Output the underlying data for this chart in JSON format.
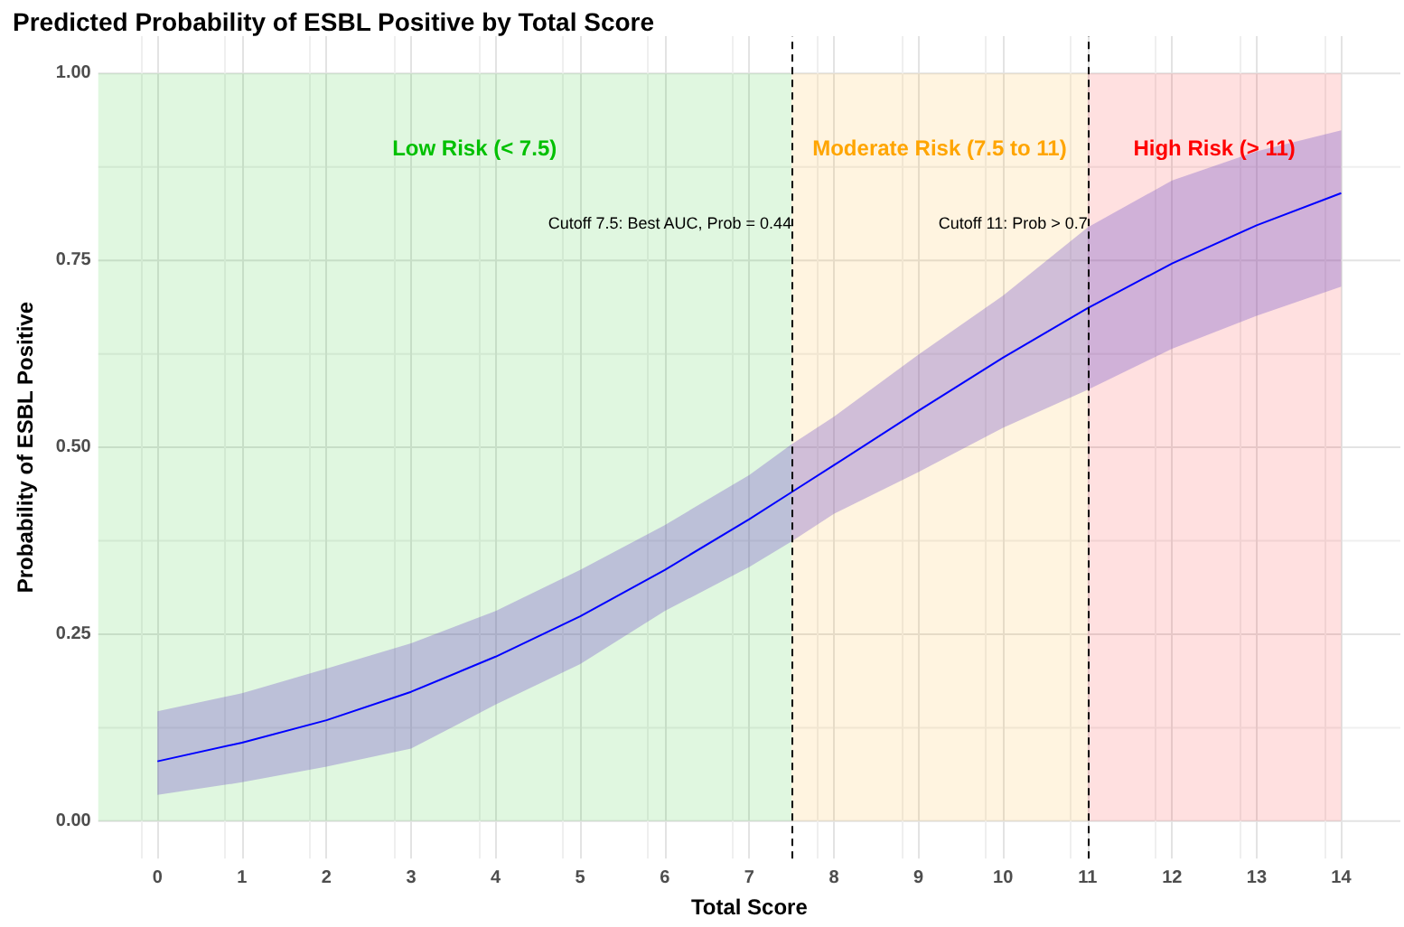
{
  "chart_data": {
    "type": "line",
    "title": "Predicted Probability of ESBL Positive by Total Score",
    "xlabel": "Total Score",
    "ylabel": "Probability of ESBL Positive",
    "x": [
      0,
      1,
      2,
      3,
      4,
      5,
      6,
      7,
      7.5,
      8,
      9,
      10,
      11,
      12,
      13,
      14
    ],
    "series": [
      {
        "color": "#0000ff",
        "values": [
          0.08,
          0.105,
          0.135,
          0.173,
          0.22,
          0.274,
          0.336,
          0.404,
          0.44,
          0.476,
          0.549,
          0.62,
          0.686,
          0.746,
          0.797,
          0.84
        ],
        "lower": [
          0.035,
          0.052,
          0.073,
          0.097,
          0.156,
          0.21,
          0.281,
          0.34,
          0.374,
          0.411,
          0.467,
          0.526,
          0.577,
          0.632,
          0.676,
          0.715
        ],
        "upper": [
          0.147,
          0.171,
          0.204,
          0.238,
          0.281,
          0.336,
          0.396,
          0.463,
          0.504,
          0.541,
          0.624,
          0.703,
          0.794,
          0.857,
          0.896,
          0.924
        ]
      }
    ],
    "xlim": [
      -0.7,
      14.7
    ],
    "ylim": [
      -0.05,
      1.05
    ],
    "xticks": [
      0,
      1,
      2,
      3,
      4,
      5,
      6,
      7,
      8,
      9,
      10,
      11,
      12,
      13,
      14
    ],
    "yticks": [
      {
        "value": 0,
        "label": "0.00"
      },
      {
        "value": 0.25,
        "label": "0.25"
      },
      {
        "value": 0.5,
        "label": "0.50"
      },
      {
        "value": 0.75,
        "label": "0.75"
      },
      {
        "value": 1,
        "label": "1.00"
      }
    ],
    "bands": [
      {
        "axis": "x",
        "from": -0.7,
        "to": 7.5,
        "label": "Low Risk (< 7.5)",
        "color": "#00c000"
      },
      {
        "axis": "x",
        "from": 7.5,
        "to": 11,
        "label": "Moderate Risk (7.5 to 11)",
        "color": "#ffa500"
      },
      {
        "axis": "x",
        "from": 11,
        "to": 14,
        "label": "High Risk (> 11)",
        "color": "#ff0000"
      }
    ],
    "ref_lines": [
      {
        "axis": "x",
        "value": 7.5,
        "label": "Cutoff 7.5: Best AUC, Prob = 0.44",
        "line_style": "dashed",
        "color": "#000000"
      },
      {
        "axis": "x",
        "value": 11,
        "label": "Cutoff 11: Prob > 0.7",
        "line_style": "dashed",
        "color": "#000000"
      }
    ],
    "grid": true,
    "marker": "none",
    "line_style": "solid"
  }
}
